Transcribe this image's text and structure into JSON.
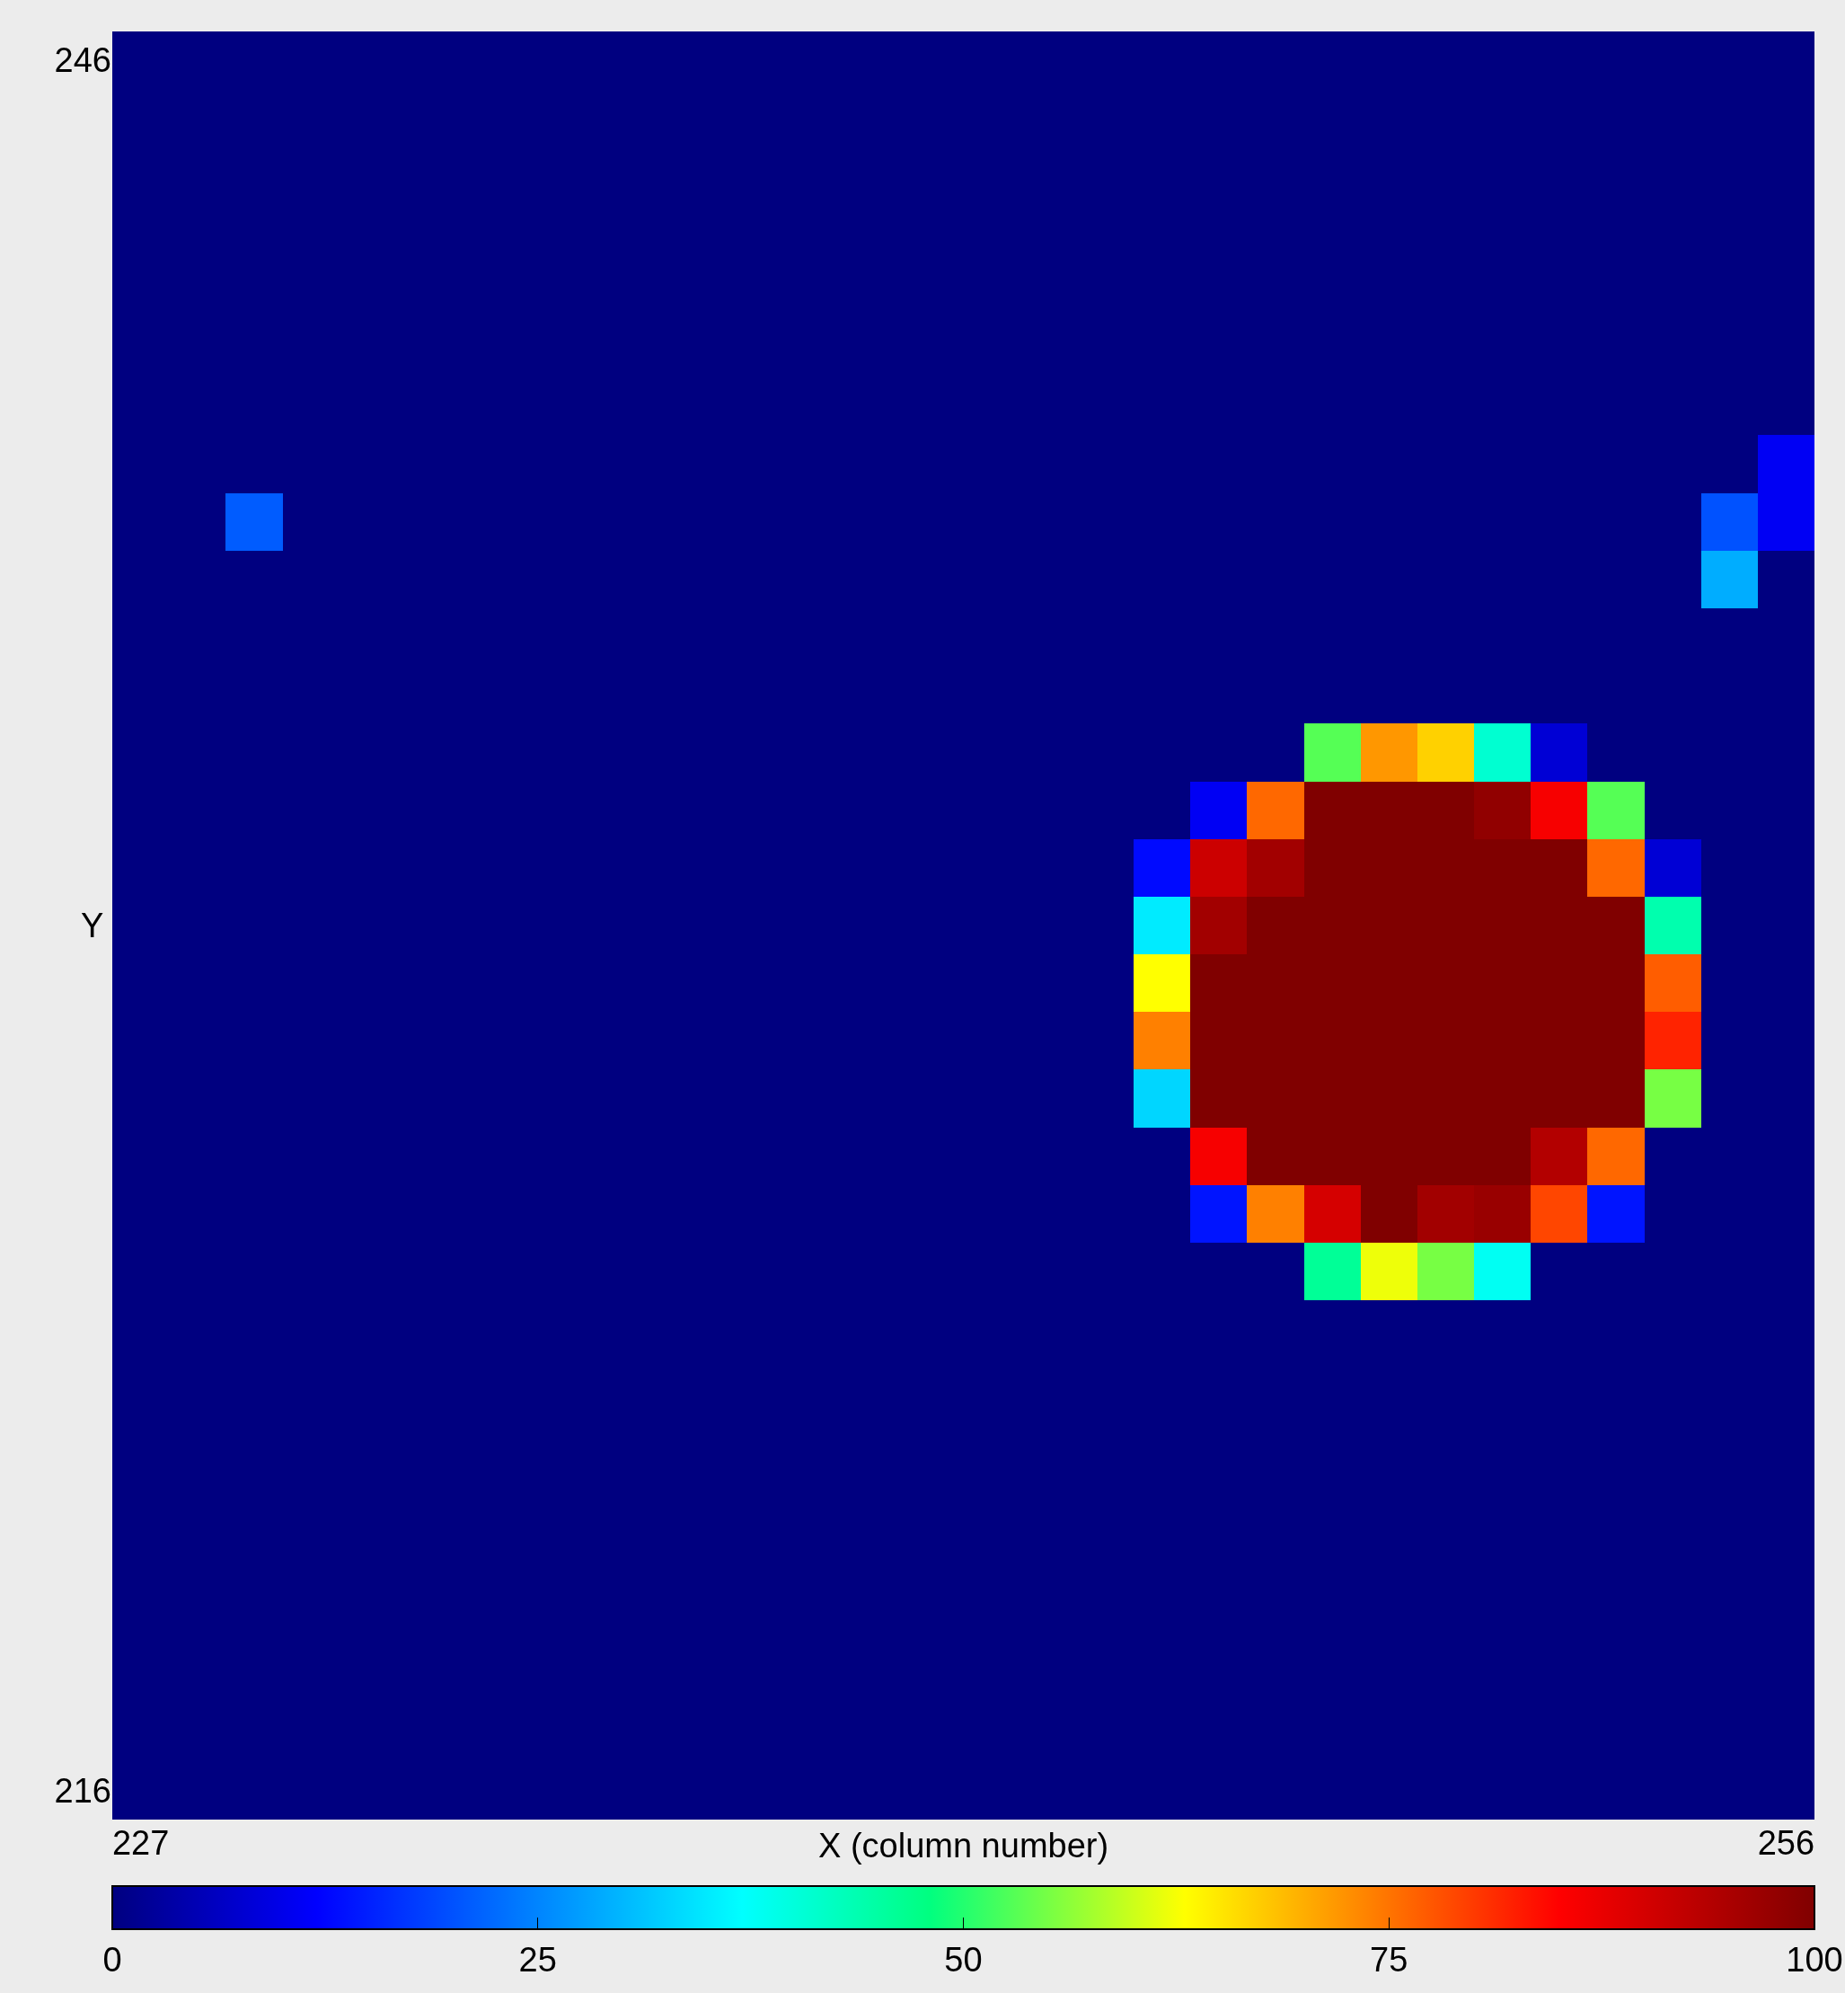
{
  "chart_data": {
    "type": "heatmap",
    "xlabel": "X (column number)",
    "ylabel": "Y",
    "categories": [
      "227",
      null,
      null,
      null,
      null,
      null,
      null,
      null,
      null,
      null,
      null,
      null,
      null,
      null,
      null,
      null,
      null,
      null,
      null,
      null,
      null,
      null,
      null,
      null,
      null,
      null,
      null,
      null,
      null,
      "256"
    ],
    "y_categories": [
      "246",
      null,
      null,
      null,
      null,
      null,
      null,
      null,
      null,
      null,
      null,
      null,
      null,
      null,
      null,
      null,
      null,
      null,
      null,
      null,
      null,
      null,
      null,
      null,
      null,
      null,
      null,
      null,
      null,
      null,
      "216"
    ],
    "clim": [
      0,
      100
    ],
    "cticks": [
      0,
      25,
      50,
      75,
      100
    ],
    "cells": [
      [
        0,
        0,
        0,
        0,
        0,
        0,
        0,
        0,
        0,
        0,
        0,
        0,
        0,
        0,
        0,
        0,
        0,
        0,
        0,
        0,
        0,
        0,
        0,
        0,
        0,
        0,
        0,
        0,
        0,
        0
      ],
      [
        0,
        0,
        0,
        0,
        0,
        0,
        0,
        0,
        0,
        0,
        0,
        0,
        0,
        0,
        0,
        0,
        0,
        0,
        0,
        0,
        0,
        0,
        0,
        0,
        0,
        0,
        0,
        0,
        0,
        0
      ],
      [
        0,
        0,
        0,
        0,
        0,
        0,
        0,
        0,
        0,
        0,
        0,
        0,
        0,
        0,
        0,
        0,
        0,
        0,
        0,
        0,
        0,
        0,
        0,
        0,
        0,
        0,
        0,
        0,
        0,
        0
      ],
      [
        0,
        0,
        0,
        0,
        0,
        0,
        0,
        0,
        0,
        0,
        0,
        0,
        0,
        0,
        0,
        0,
        0,
        0,
        0,
        0,
        0,
        0,
        0,
        0,
        0,
        0,
        0,
        0,
        0,
        0
      ],
      [
        0,
        0,
        0,
        0,
        0,
        0,
        0,
        0,
        0,
        0,
        0,
        0,
        0,
        0,
        0,
        0,
        0,
        0,
        0,
        0,
        0,
        0,
        0,
        0,
        0,
        0,
        0,
        0,
        0,
        0
      ],
      [
        0,
        0,
        0,
        0,
        0,
        0,
        0,
        0,
        0,
        0,
        0,
        0,
        0,
        0,
        0,
        0,
        0,
        0,
        0,
        0,
        0,
        0,
        0,
        0,
        0,
        0,
        0,
        0,
        0,
        0
      ],
      [
        0,
        0,
        0,
        0,
        0,
        0,
        0,
        0,
        0,
        0,
        0,
        0,
        0,
        0,
        0,
        0,
        0,
        0,
        0,
        0,
        0,
        0,
        0,
        0,
        0,
        0,
        0,
        0,
        0,
        0
      ],
      [
        0,
        0,
        0,
        0,
        0,
        0,
        0,
        0,
        0,
        0,
        0,
        0,
        0,
        0,
        0,
        0,
        0,
        0,
        0,
        0,
        0,
        0,
        0,
        0,
        0,
        0,
        0,
        0,
        0,
        11
      ],
      [
        0,
        0,
        21,
        0,
        0,
        0,
        0,
        0,
        0,
        0,
        0,
        0,
        0,
        0,
        0,
        0,
        0,
        0,
        0,
        0,
        0,
        0,
        0,
        0,
        0,
        0,
        0,
        0,
        20,
        11
      ],
      [
        0,
        0,
        0,
        0,
        0,
        0,
        0,
        0,
        0,
        0,
        0,
        0,
        0,
        0,
        0,
        0,
        0,
        0,
        0,
        0,
        0,
        0,
        0,
        0,
        0,
        0,
        0,
        0,
        29,
        0
      ],
      [
        0,
        0,
        0,
        0,
        0,
        0,
        0,
        0,
        0,
        0,
        0,
        0,
        0,
        0,
        0,
        0,
        0,
        0,
        0,
        0,
        0,
        0,
        0,
        0,
        0,
        0,
        0,
        0,
        0,
        0
      ],
      [
        0,
        0,
        0,
        0,
        0,
        0,
        0,
        0,
        0,
        0,
        0,
        0,
        0,
        0,
        0,
        0,
        0,
        0,
        0,
        0,
        0,
        0,
        0,
        0,
        0,
        0,
        0,
        0,
        0,
        0
      ],
      [
        0,
        0,
        0,
        0,
        0,
        0,
        0,
        0,
        0,
        0,
        0,
        0,
        0,
        0,
        0,
        0,
        0,
        0,
        0,
        0,
        0,
        53,
        72,
        67,
        41,
        8,
        0,
        0,
        0,
        0
      ],
      [
        0,
        0,
        0,
        0,
        0,
        0,
        0,
        0,
        0,
        0,
        0,
        0,
        0,
        0,
        0,
        0,
        0,
        0,
        0,
        11,
        76,
        100,
        100,
        100,
        98,
        86,
        53,
        0,
        0,
        0
      ],
      [
        0,
        0,
        0,
        0,
        0,
        0,
        0,
        0,
        0,
        0,
        0,
        0,
        0,
        0,
        0,
        0,
        0,
        0,
        13,
        91,
        96,
        100,
        100,
        100,
        100,
        100,
        76,
        8,
        0,
        0
      ],
      [
        0,
        0,
        0,
        0,
        0,
        0,
        0,
        0,
        0,
        0,
        0,
        0,
        0,
        0,
        0,
        0,
        0,
        0,
        35,
        96,
        100,
        100,
        100,
        100,
        100,
        100,
        100,
        44,
        0,
        0
      ],
      [
        0,
        0,
        0,
        0,
        0,
        0,
        0,
        0,
        0,
        0,
        0,
        0,
        0,
        0,
        0,
        0,
        0,
        0,
        63,
        100,
        100,
        100,
        100,
        100,
        100,
        100,
        100,
        77,
        0,
        0
      ],
      [
        0,
        0,
        0,
        0,
        0,
        0,
        0,
        0,
        0,
        0,
        0,
        0,
        0,
        0,
        0,
        0,
        0,
        0,
        74,
        100,
        100,
        100,
        100,
        100,
        100,
        100,
        100,
        82,
        0,
        0
      ],
      [
        0,
        0,
        0,
        0,
        0,
        0,
        0,
        0,
        0,
        0,
        0,
        0,
        0,
        0,
        0,
        0,
        0,
        0,
        33,
        100,
        100,
        100,
        100,
        100,
        100,
        100,
        100,
        55,
        0,
        0
      ],
      [
        0,
        0,
        0,
        0,
        0,
        0,
        0,
        0,
        0,
        0,
        0,
        0,
        0,
        0,
        0,
        0,
        0,
        0,
        0,
        86,
        100,
        100,
        100,
        100,
        100,
        94,
        76,
        0,
        0,
        0
      ],
      [
        0,
        0,
        0,
        0,
        0,
        0,
        0,
        0,
        0,
        0,
        0,
        0,
        0,
        0,
        0,
        0,
        0,
        0,
        0,
        14,
        74,
        90,
        100,
        96,
        97,
        79,
        14,
        0,
        0,
        0
      ],
      [
        0,
        0,
        0,
        0,
        0,
        0,
        0,
        0,
        0,
        0,
        0,
        0,
        0,
        0,
        0,
        0,
        0,
        0,
        0,
        0,
        0,
        46,
        62,
        55,
        38,
        0,
        0,
        0,
        0,
        0
      ],
      [
        0,
        0,
        0,
        0,
        0,
        0,
        0,
        0,
        0,
        0,
        0,
        0,
        0,
        0,
        0,
        0,
        0,
        0,
        0,
        0,
        0,
        0,
        0,
        0,
        0,
        0,
        0,
        0,
        0,
        0
      ],
      [
        0,
        0,
        0,
        0,
        0,
        0,
        0,
        0,
        0,
        0,
        0,
        0,
        0,
        0,
        0,
        0,
        0,
        0,
        0,
        0,
        0,
        0,
        0,
        0,
        0,
        0,
        0,
        0,
        0,
        0
      ],
      [
        0,
        0,
        0,
        0,
        0,
        0,
        0,
        0,
        0,
        0,
        0,
        0,
        0,
        0,
        0,
        0,
        0,
        0,
        0,
        0,
        0,
        0,
        0,
        0,
        0,
        0,
        0,
        0,
        0,
        0
      ],
      [
        0,
        0,
        0,
        0,
        0,
        0,
        0,
        0,
        0,
        0,
        0,
        0,
        0,
        0,
        0,
        0,
        0,
        0,
        0,
        0,
        0,
        0,
        0,
        0,
        0,
        0,
        0,
        0,
        0,
        0
      ],
      [
        0,
        0,
        0,
        0,
        0,
        0,
        0,
        0,
        0,
        0,
        0,
        0,
        0,
        0,
        0,
        0,
        0,
        0,
        0,
        0,
        0,
        0,
        0,
        0,
        0,
        0,
        0,
        0,
        0,
        0
      ],
      [
        0,
        0,
        0,
        0,
        0,
        0,
        0,
        0,
        0,
        0,
        0,
        0,
        0,
        0,
        0,
        0,
        0,
        0,
        0,
        0,
        0,
        0,
        0,
        0,
        0,
        0,
        0,
        0,
        0,
        0
      ],
      [
        0,
        0,
        0,
        0,
        0,
        0,
        0,
        0,
        0,
        0,
        0,
        0,
        0,
        0,
        0,
        0,
        0,
        0,
        0,
        0,
        0,
        0,
        0,
        0,
        0,
        0,
        0,
        0,
        0,
        0
      ],
      [
        0,
        0,
        0,
        0,
        0,
        0,
        0,
        0,
        0,
        0,
        0,
        0,
        0,
        0,
        0,
        0,
        0,
        0,
        0,
        0,
        0,
        0,
        0,
        0,
        0,
        0,
        0,
        0,
        0,
        0
      ],
      [
        0,
        0,
        0,
        0,
        0,
        0,
        0,
        0,
        0,
        0,
        0,
        0,
        0,
        0,
        0,
        0,
        0,
        0,
        0,
        0,
        0,
        0,
        0,
        0,
        0,
        0,
        0,
        0,
        0,
        0
      ]
    ]
  }
}
